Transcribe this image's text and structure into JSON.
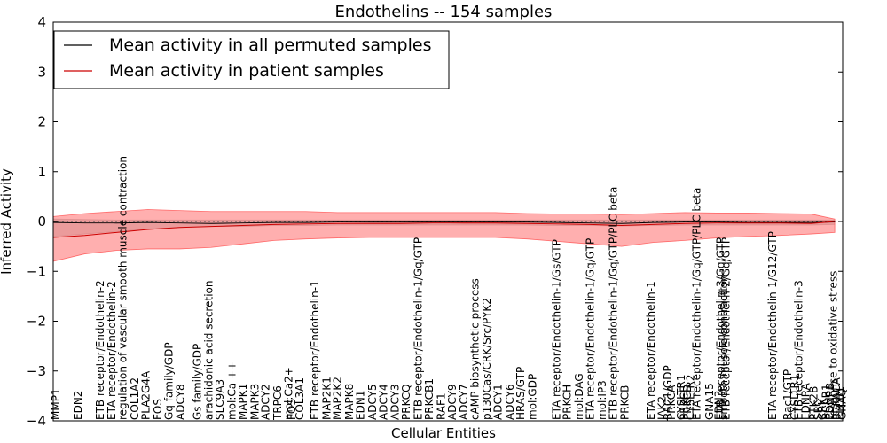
{
  "chart_data": {
    "type": "line",
    "title": "Endothelins -- 154 samples",
    "xlabel": "Cellular Entities",
    "ylabel": "Inferred Activity",
    "ylim": [
      -4,
      4
    ],
    "yticks": [
      "−4",
      "−3",
      "−2",
      "−1",
      "0",
      "1",
      "2",
      "3",
      "4"
    ],
    "xlim": [
      0,
      100
    ],
    "grid": false,
    "legend_position": "top-left",
    "zero_line": "dotted",
    "x": [
      0,
      4,
      8,
      12,
      16,
      20,
      24,
      28,
      32,
      36,
      40,
      44,
      48,
      52,
      56,
      60,
      64,
      68,
      72,
      76,
      80,
      84,
      88,
      92,
      96,
      99
    ],
    "series": [
      {
        "name": "Mean activity in all permuted samples",
        "color": "#000000",
        "band_color": "#bbbbbb",
        "values": [
          -0.02,
          -0.03,
          -0.03,
          -0.02,
          -0.03,
          -0.04,
          -0.03,
          -0.02,
          -0.02,
          -0.01,
          -0.01,
          -0.01,
          -0.01,
          -0.01,
          -0.01,
          -0.01,
          -0.02,
          -0.03,
          -0.04,
          -0.02,
          -0.01,
          -0.01,
          -0.02,
          -0.02,
          -0.02,
          -0.01
        ],
        "upper": [
          0.05,
          0.04,
          0.03,
          0.03,
          0.03,
          0.03,
          0.03,
          0.03,
          0.03,
          0.03,
          0.03,
          0.03,
          0.03,
          0.03,
          0.03,
          0.03,
          0.03,
          0.03,
          0.03,
          0.03,
          0.03,
          0.03,
          0.03,
          0.03,
          0.03,
          0.03
        ],
        "lower": [
          -0.3,
          -0.25,
          -0.2,
          -0.15,
          -0.12,
          -0.1,
          -0.1,
          -0.08,
          -0.08,
          -0.07,
          -0.07,
          -0.07,
          -0.07,
          -0.07,
          -0.07,
          -0.07,
          -0.08,
          -0.08,
          -0.09,
          -0.08,
          -0.07,
          -0.07,
          -0.07,
          -0.07,
          -0.07,
          -0.06
        ]
      },
      {
        "name": "Mean activity in patient samples",
        "color": "#cc0000",
        "band_color": "#ff4d4d",
        "values": [
          -0.32,
          -0.28,
          -0.22,
          -0.16,
          -0.12,
          -0.1,
          -0.08,
          -0.06,
          -0.05,
          -0.04,
          -0.04,
          -0.04,
          -0.03,
          -0.03,
          -0.03,
          -0.04,
          -0.05,
          -0.06,
          -0.08,
          -0.06,
          -0.04,
          -0.03,
          -0.03,
          -0.03,
          -0.04,
          0.0
        ],
        "upper": [
          0.1,
          0.16,
          0.2,
          0.24,
          0.22,
          0.2,
          0.2,
          0.2,
          0.2,
          0.18,
          0.18,
          0.18,
          0.18,
          0.18,
          0.18,
          0.16,
          0.15,
          0.15,
          0.14,
          0.16,
          0.18,
          0.17,
          0.17,
          0.16,
          0.15,
          0.05
        ],
        "lower": [
          -0.8,
          -0.65,
          -0.58,
          -0.55,
          -0.55,
          -0.52,
          -0.45,
          -0.38,
          -0.35,
          -0.33,
          -0.32,
          -0.32,
          -0.32,
          -0.32,
          -0.32,
          -0.35,
          -0.4,
          -0.45,
          -0.5,
          -0.42,
          -0.38,
          -0.33,
          -0.3,
          -0.28,
          -0.25,
          -0.22
        ]
      }
    ],
    "entities": [
      {
        "x": 0,
        "label": "MMP1"
      },
      {
        "x": 2.8,
        "label": "EDN2"
      },
      {
        "x": 5.6,
        "label": "ETB receptor/Endothelin-2"
      },
      {
        "x": 7.1,
        "label": "ETA receptor/Endothelin-2"
      },
      {
        "x": 8.5,
        "label": "regulation of vascular smooth muscle contraction"
      },
      {
        "x": 10.0,
        "label": "COL1A2"
      },
      {
        "x": 11.4,
        "label": "PLA2G4A"
      },
      {
        "x": 12.9,
        "label": "FOS"
      },
      {
        "x": 14.3,
        "label": "Gq family/GDP"
      },
      {
        "x": 15.8,
        "label": "ADCY8"
      },
      {
        "x": 17.9,
        "label": "Gs family/GDP"
      },
      {
        "x": 19.4,
        "label": "arachidonic acid secretion"
      },
      {
        "x": 20.8,
        "label": "SLC9A3"
      },
      {
        "x": 22.3,
        "label": "mol:Ca ++"
      },
      {
        "x": 23.7,
        "label": "MAPK1"
      },
      {
        "x": 25.2,
        "label": "MAPK3"
      },
      {
        "x": 26.6,
        "label": "ADCY2"
      },
      {
        "x": 28.1,
        "label": "TRPC6"
      },
      {
        "x": 29.5,
        "label": "mol:Ca2+"
      },
      {
        "x": 29.9,
        "label": "FOS"
      },
      {
        "x": 30.9,
        "label": "COL3A1"
      },
      {
        "x": 32.8,
        "label": "ETB receptor/Endothelin-1"
      },
      {
        "x": 34.3,
        "label": "MAP2K1"
      },
      {
        "x": 35.7,
        "label": "MAP2K2"
      },
      {
        "x": 37.2,
        "label": "MAPK8"
      },
      {
        "x": 38.6,
        "label": "EDN1"
      },
      {
        "x": 40.1,
        "label": "ADCY5"
      },
      {
        "x": 41.5,
        "label": "ADCY4"
      },
      {
        "x": 43.0,
        "label": "ADCY3"
      },
      {
        "x": 44.4,
        "label": "PRKCQ"
      },
      {
        "x": 45.9,
        "label": "ETB receptor/Endothelin-1/Gq/GTP"
      },
      {
        "x": 47.3,
        "label": "PRKCB1"
      },
      {
        "x": 48.8,
        "label": "RAF1"
      },
      {
        "x": 50.2,
        "label": "ADCY9"
      },
      {
        "x": 51.7,
        "label": "ADCY7"
      },
      {
        "x": 53.1,
        "label": "cAMP biosynthetic process"
      },
      {
        "x": 54.6,
        "label": "p130Cas/CRK/Src/PYK2"
      },
      {
        "x": 56.0,
        "label": "ADCY1"
      },
      {
        "x": 57.5,
        "label": "ADCY6"
      },
      {
        "x": 58.9,
        "label": "HRAS/GTP"
      },
      {
        "x": 60.4,
        "label": "mol:GDP"
      },
      {
        "x": 63.4,
        "label": "ETA receptor/Endothelin-1/Gs/GTP"
      },
      {
        "x": 64.8,
        "label": "PRKCH"
      },
      {
        "x": 66.3,
        "label": "mol:DAG"
      },
      {
        "x": 67.7,
        "label": "ETA receptor/Endothelin-1/Gq/GTP"
      },
      {
        "x": 69.2,
        "label": "mol:IP3"
      },
      {
        "x": 70.6,
        "label": "ETB receptor/Endothelin-1/Gq/GTP/PLC beta"
      },
      {
        "x": 72.1,
        "label": "PRKCB"
      },
      {
        "x": 75.4,
        "label": "ETA receptor/Endothelin-1"
      },
      {
        "x": 76.8,
        "label": "JAK2"
      },
      {
        "x": 77.5,
        "label": "RAC1/GDP"
      },
      {
        "x": 78.0,
        "label": "PRKCA"
      },
      {
        "x": 79.2,
        "label": "CYSLTR1"
      },
      {
        "x": 79.6,
        "label": "PRKCE"
      },
      {
        "x": 80.0,
        "label": "PRKCD"
      },
      {
        "x": 80.4,
        "label": "CYSLTR2"
      },
      {
        "x": 81.2,
        "label": "ETA receptor/Endothelin-1/Gq/GTP/PLC beta"
      },
      {
        "x": 82.8,
        "label": "GNA15"
      },
      {
        "x": 84.0,
        "label": "EDN3"
      },
      {
        "x": 84.2,
        "label": "ETB receptor/Endothelin-3/Gq/GTP"
      },
      {
        "x": 84.6,
        "label": "smooth muscle contraction"
      },
      {
        "x": 84.9,
        "label": "ETB receptor/Endothelin-2/Gq/GTP"
      },
      {
        "x": 90.8,
        "label": "ETA receptor/Endothelin-1/G12/GTP"
      },
      {
        "x": 92.7,
        "label": "Rac1/GTP"
      },
      {
        "x": 93.6,
        "label": "CYSLTR1"
      },
      {
        "x": 94.1,
        "label": "ETB receptor/Endothelin-3"
      },
      {
        "x": 95.0,
        "label": "EDNRA"
      },
      {
        "x": 96.0,
        "label": "PTK2B"
      },
      {
        "x": 96.6,
        "label": "SRC"
      },
      {
        "x": 97.1,
        "label": "CRK"
      },
      {
        "x": 97.6,
        "label": "BCAR1"
      },
      {
        "x": 98.1,
        "label": "EDNRB"
      },
      {
        "x": 98.5,
        "label": "response to oxidative stress"
      },
      {
        "x": 98.9,
        "label": "PRKACA"
      },
      {
        "x": 99.3,
        "label": "PLCB1"
      },
      {
        "x": 99.6,
        "label": "GNAQ"
      }
    ]
  }
}
